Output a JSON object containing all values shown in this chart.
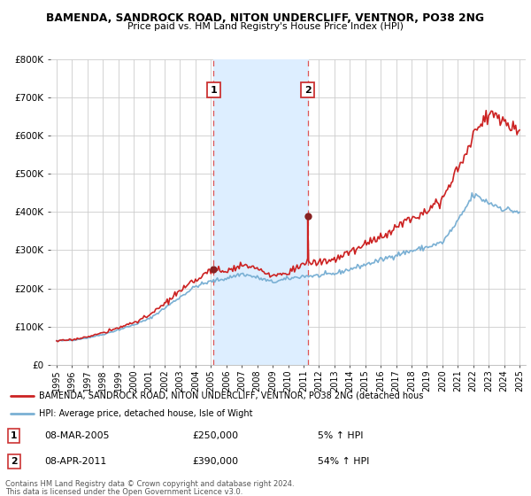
{
  "title1": "BAMENDA, SANDROCK ROAD, NITON UNDERCLIFF, VENTNOR, PO38 2NG",
  "title2": "Price paid vs. HM Land Registry's House Price Index (HPI)",
  "legend_line1": "BAMENDA, SANDROCK ROAD, NITON UNDERCLIFF, VENTNOR, PO38 2NG (detached hous",
  "legend_line2": "HPI: Average price, detached house, Isle of Wight",
  "footer1": "Contains HM Land Registry data © Crown copyright and database right 2024.",
  "footer2": "This data is licensed under the Open Government Licence v3.0.",
  "purchase1_date": "08-MAR-2005",
  "purchase1_price": 250000,
  "purchase1_pct": "5% ↑ HPI",
  "purchase2_date": "08-APR-2011",
  "purchase2_price": 390000,
  "purchase2_pct": "54% ↑ HPI",
  "purchase1_year": 2005.18,
  "purchase2_year": 2011.27,
  "ylim": [
    0,
    800000
  ],
  "yticks": [
    0,
    100000,
    200000,
    300000,
    400000,
    500000,
    600000,
    700000,
    800000
  ],
  "ytick_labels": [
    "£0",
    "£100K",
    "£200K",
    "£300K",
    "£400K",
    "£500K",
    "£600K",
    "£700K",
    "£800K"
  ],
  "hpi_color": "#7ab0d4",
  "price_color": "#cc2222",
  "marker_color": "#882222",
  "shade_color": "#ddeeff",
  "grid_color": "#cccccc",
  "background_color": "#ffffff"
}
